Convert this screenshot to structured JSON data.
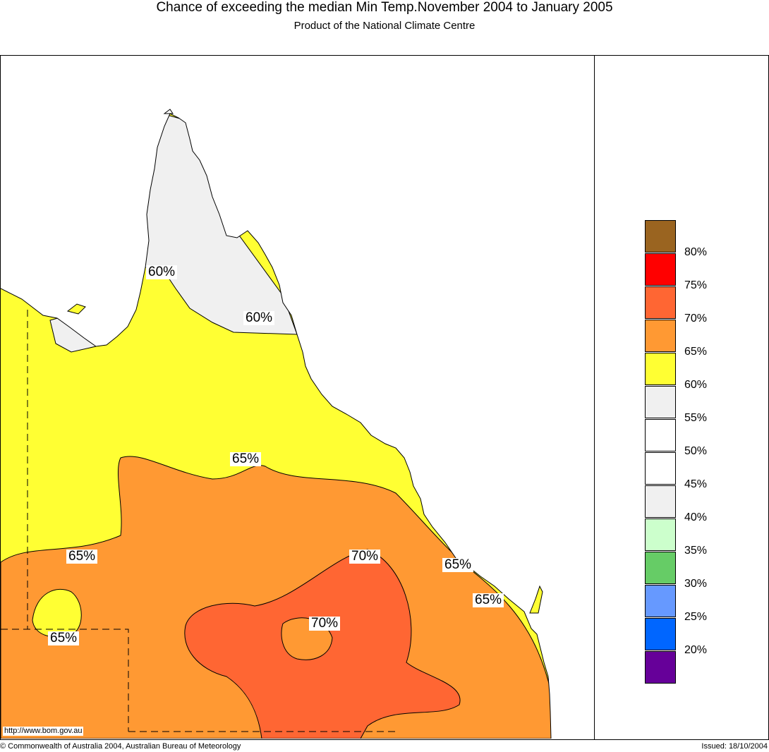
{
  "header": {
    "title": "Chance of exceeding the median Min Temp.November 2004 to January 2005",
    "subtitle": "Product of the National Climate Centre"
  },
  "map": {
    "labels": [
      "60%",
      "60%",
      "65%",
      "65%",
      "65%",
      "65%",
      "65%",
      "70%",
      "70%"
    ],
    "url": "http://www.bom.gov.au"
  },
  "legend": {
    "colors": [
      "#9a6420",
      "#ff0000",
      "#ff6633",
      "#ff9933",
      "#ffff33",
      "#f0f0f0",
      "#ffffff",
      "#ffffff",
      "#f0f0f0",
      "#ccffcc",
      "#66cc66",
      "#6699ff",
      "#0066ff",
      "#660099"
    ],
    "labels": [
      "80%",
      "75%",
      "70%",
      "65%",
      "60%",
      "55%",
      "50%",
      "45%",
      "40%",
      "35%",
      "30%",
      "25%",
      "20%"
    ]
  },
  "footer": {
    "copyright": "© Commonwealth of Australia 2004, Australian Bureau of Meteorology",
    "issued": "Issued: 18/10/2004"
  }
}
